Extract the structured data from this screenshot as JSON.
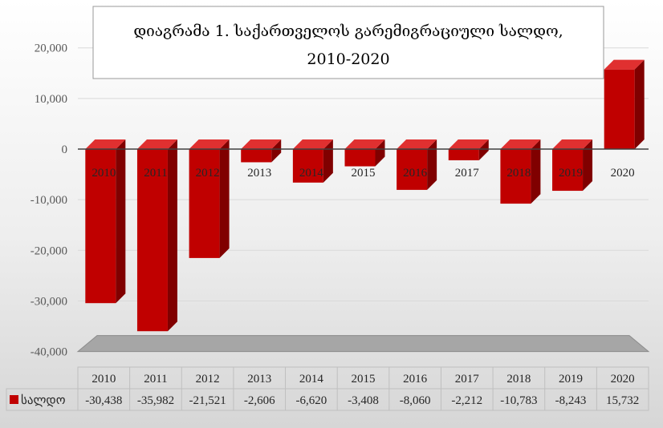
{
  "chart_data": {
    "type": "bar",
    "title_line1": "დიაგრამა 1. საქართველოს გარემიგრაციული სალდო,",
    "title_line2": "2010-2020",
    "categories": [
      "2010",
      "2011",
      "2012",
      "2013",
      "2014",
      "2015",
      "2016",
      "2017",
      "2018",
      "2019",
      "2020"
    ],
    "series": [
      {
        "name": "სალდო",
        "values": [
          -30438,
          -35982,
          -21521,
          -2606,
          -6620,
          -3408,
          -8060,
          -2212,
          -10783,
          -8243,
          15732
        ],
        "value_labels": [
          "-30,438",
          "-35,982",
          "-21,521",
          "-2,606",
          "-6,620",
          "-3,408",
          "-8,060",
          "-2,212",
          "-10,783",
          "-8,243",
          "15,732"
        ],
        "color": "#C00000"
      }
    ],
    "yticks": [
      20000,
      10000,
      0,
      -10000,
      -20000,
      -30000,
      -40000
    ],
    "ytick_labels": [
      "20,000",
      "10,000",
      "0",
      "-10,000",
      "-20,000",
      "-30,000",
      "-40,000"
    ],
    "ylim": [
      -40000,
      20000
    ],
    "grid": true,
    "legend": "data-table"
  }
}
